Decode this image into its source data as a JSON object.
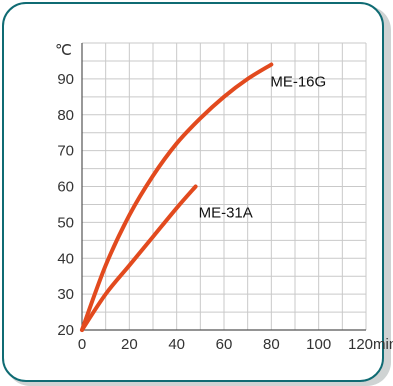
{
  "chart_data": {
    "type": "line",
    "yunit": "℃",
    "xunit": "min",
    "xlim": [
      0,
      120
    ],
    "ylim": [
      20,
      100
    ],
    "xticks": [
      "0",
      "20",
      "40",
      "60",
      "80",
      "100",
      "120min"
    ],
    "yticks": [
      "20",
      "30",
      "40",
      "50",
      "60",
      "70",
      "80",
      "90"
    ],
    "grid": true,
    "series": [
      {
        "name": "ME-16G",
        "color": "#e24a1e",
        "points": [
          [
            0,
            20
          ],
          [
            10,
            38
          ],
          [
            20,
            52
          ],
          [
            30,
            63
          ],
          [
            40,
            72
          ],
          [
            50,
            79
          ],
          [
            60,
            85
          ],
          [
            70,
            90
          ],
          [
            80,
            94
          ]
        ]
      },
      {
        "name": "ME-31A",
        "color": "#e24a1e",
        "points": [
          [
            0,
            20
          ],
          [
            10,
            30
          ],
          [
            20,
            38
          ],
          [
            30,
            46
          ],
          [
            40,
            54
          ],
          [
            48,
            60
          ]
        ]
      }
    ]
  }
}
